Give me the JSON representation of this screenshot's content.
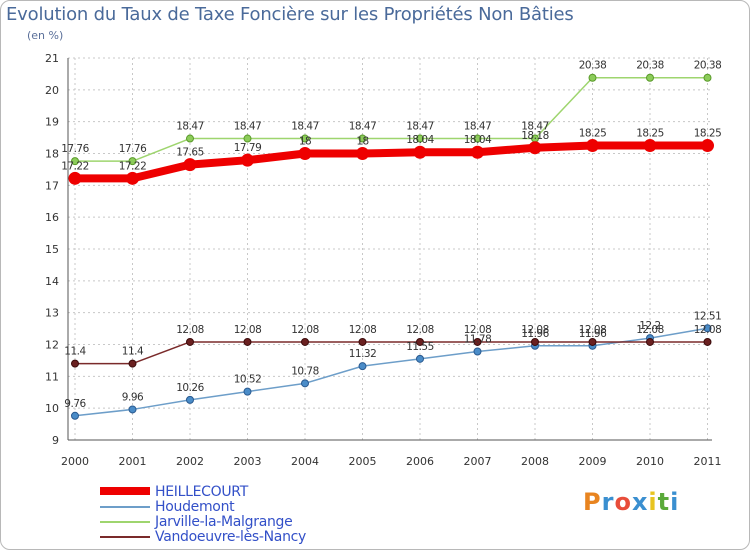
{
  "title": "Evolution du Taux de Taxe Foncière sur les Propriétés Non Bâties",
  "unit": "(en %)",
  "chart_data": {
    "type": "line",
    "title": "Evolution du Taux de Taxe Foncière sur les Propriétés Non Bâties",
    "ylabel": "(en %)",
    "xlabel": "",
    "x": [
      "2000",
      "2001",
      "2002",
      "2003",
      "2004",
      "2005",
      "2006",
      "2007",
      "2008",
      "2009",
      "2010",
      "2011"
    ],
    "ylim": [
      9,
      21
    ],
    "yticks": [
      9,
      10,
      11,
      12,
      13,
      14,
      15,
      16,
      17,
      18,
      19,
      20,
      21
    ],
    "grid": true,
    "series": [
      {
        "name": "HEILLECOURT",
        "color": "#ee0000",
        "values": [
          17.22,
          17.22,
          17.65,
          17.79,
          18,
          18,
          18.04,
          18.04,
          18.18,
          18.25,
          18.25,
          18.25
        ],
        "labels": [
          "17.22",
          "17.22",
          "17.65",
          "17.79",
          "18",
          "18",
          "18.04",
          "18.04",
          "18.18",
          "18.25",
          "18.25",
          "18.25"
        ]
      },
      {
        "name": "Houdemont",
        "color": "#6d9ec9",
        "values": [
          9.76,
          9.96,
          10.26,
          10.52,
          10.78,
          11.32,
          11.55,
          11.78,
          11.96,
          11.96,
          12.2,
          12.51
        ],
        "labels": [
          "9.76",
          "9.96",
          "10.26",
          "10.52",
          "10.78",
          "11.32",
          "11.55",
          "11.78",
          "11.96",
          "11.96",
          "12.2",
          "12.51"
        ]
      },
      {
        "name": "Jarville-la-Malgrange",
        "color": "#9ed56e",
        "values": [
          17.76,
          17.76,
          18.47,
          18.47,
          18.47,
          18.47,
          18.47,
          18.47,
          18.47,
          20.38,
          20.38,
          20.38
        ],
        "labels": [
          "17.76",
          "17.76",
          "18.47",
          "18.47",
          "18.47",
          "18.47",
          "18.47",
          "18.47",
          "18.47",
          "20.38",
          "20.38",
          "20.38"
        ]
      },
      {
        "name": "Vandoeuvre-lès-Nancy",
        "color": "#7a2a2a",
        "values": [
          11.4,
          11.4,
          12.08,
          12.08,
          12.08,
          12.08,
          12.08,
          12.08,
          12.08,
          12.08,
          12.08,
          12.08
        ],
        "labels": [
          "11.4",
          "11.4",
          "12.08",
          "12.08",
          "12.08",
          "12.08",
          "12.08",
          "12.08",
          "12.08",
          "12.08",
          "12.08",
          "12.08"
        ]
      }
    ]
  },
  "logo": {
    "letters": [
      "P",
      "r",
      "o",
      "x",
      "i",
      "t",
      "i"
    ],
    "colors": [
      "#e88420",
      "#3a8fd0",
      "#e84d3a",
      "#3a8fd0",
      "#e8c420",
      "#5aaa3a",
      "#3a8fd0"
    ]
  }
}
